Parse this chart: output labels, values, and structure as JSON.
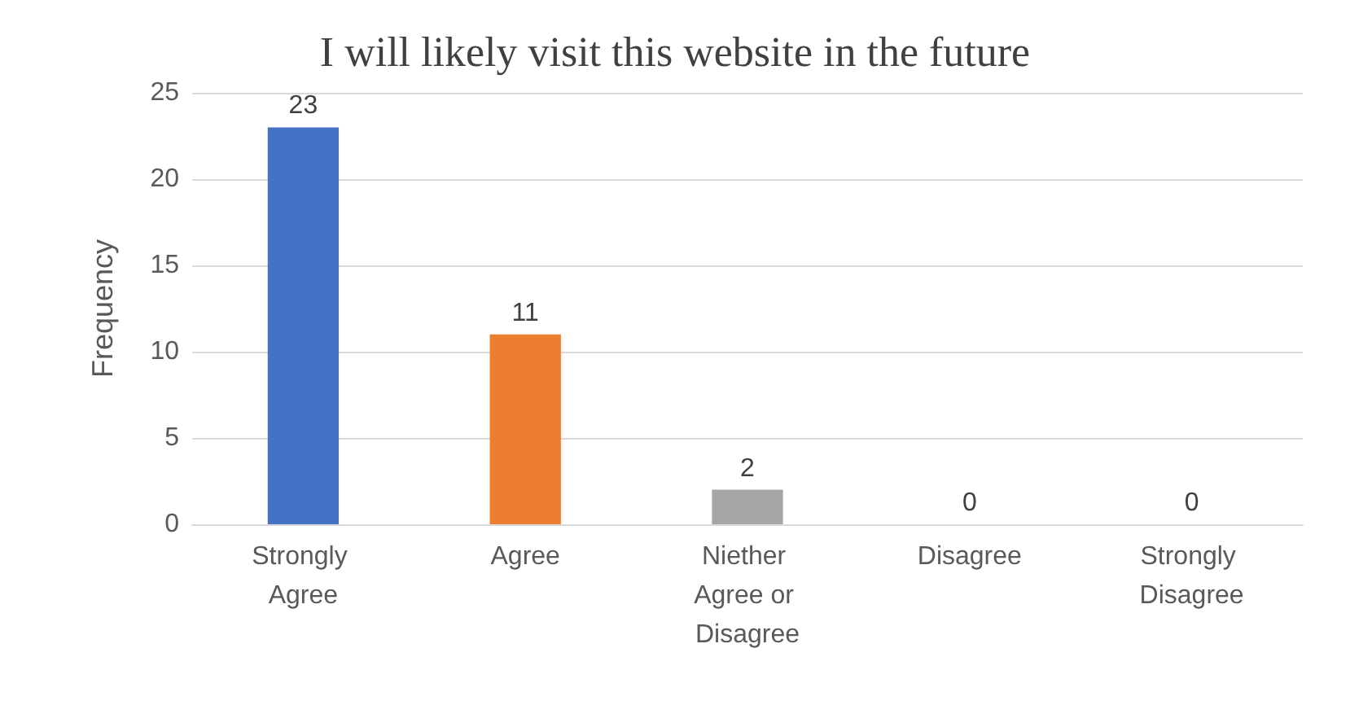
{
  "chart_data": {
    "type": "bar",
    "title": "I will likely visit this website in the future",
    "ylabel": "Frequency",
    "categories": [
      "Strongly Agree",
      "Agree",
      "Niether Agree or Disagree",
      "Disagree",
      "Strongly Disagree"
    ],
    "values": [
      23,
      11,
      2,
      0,
      0
    ],
    "colors": [
      "#4472c4",
      "#ed7d31",
      "#a5a5a5",
      "#ffc000",
      "#5b9bd5"
    ],
    "ylim": [
      0,
      25
    ],
    "yticks": [
      0,
      5,
      10,
      15,
      20,
      25
    ],
    "grid": "y",
    "data_labels": true
  }
}
